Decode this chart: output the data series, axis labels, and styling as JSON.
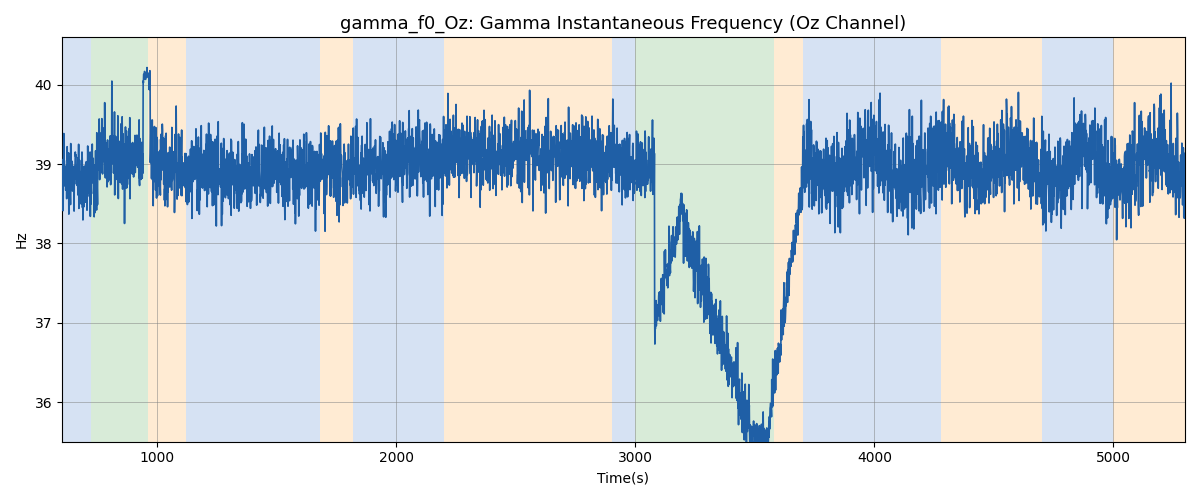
{
  "title": "gamma_f0_Oz: Gamma Instantaneous Frequency (Oz Channel)",
  "xlabel": "Time(s)",
  "ylabel": "Hz",
  "xlim": [
    600,
    5300
  ],
  "ylim": [
    35.5,
    40.6
  ],
  "yticks": [
    36,
    37,
    38,
    39,
    40
  ],
  "xticks": [
    1000,
    2000,
    3000,
    4000,
    5000
  ],
  "line_color": "#1f5fa6",
  "line_width": 1.2,
  "bg_color": "white",
  "bands": [
    {
      "xmin": 600,
      "xmax": 720,
      "color": "#aec6e8",
      "alpha": 0.5
    },
    {
      "xmin": 720,
      "xmax": 960,
      "color": "#b2d8b2",
      "alpha": 0.5
    },
    {
      "xmin": 960,
      "xmax": 1120,
      "color": "#ffd9a8",
      "alpha": 0.5
    },
    {
      "xmin": 1120,
      "xmax": 1680,
      "color": "#aec6e8",
      "alpha": 0.5
    },
    {
      "xmin": 1680,
      "xmax": 1820,
      "color": "#ffd9a8",
      "alpha": 0.5
    },
    {
      "xmin": 1820,
      "xmax": 2200,
      "color": "#aec6e8",
      "alpha": 0.5
    },
    {
      "xmin": 2200,
      "xmax": 2900,
      "color": "#ffd9a8",
      "alpha": 0.5
    },
    {
      "xmin": 2900,
      "xmax": 3000,
      "color": "#aec6e8",
      "alpha": 0.5
    },
    {
      "xmin": 3000,
      "xmax": 3580,
      "color": "#b2d8b2",
      "alpha": 0.5
    },
    {
      "xmin": 3580,
      "xmax": 3700,
      "color": "#ffd9a8",
      "alpha": 0.5
    },
    {
      "xmin": 3700,
      "xmax": 4280,
      "color": "#aec6e8",
      "alpha": 0.5
    },
    {
      "xmin": 4280,
      "xmax": 4700,
      "color": "#ffd9a8",
      "alpha": 0.5
    },
    {
      "xmin": 4700,
      "xmax": 5000,
      "color": "#aec6e8",
      "alpha": 0.5
    },
    {
      "xmin": 5000,
      "xmax": 5300,
      "color": "#ffd9a8",
      "alpha": 0.5
    }
  ],
  "seed": 42,
  "signal_start": 600,
  "signal_end": 5300,
  "signal_points": 4700,
  "base_freq": 39.0,
  "noise_std": 0.25,
  "dip_start": 3100,
  "dip_end": 3600,
  "dip_min": 35.6,
  "title_fontsize": 13
}
